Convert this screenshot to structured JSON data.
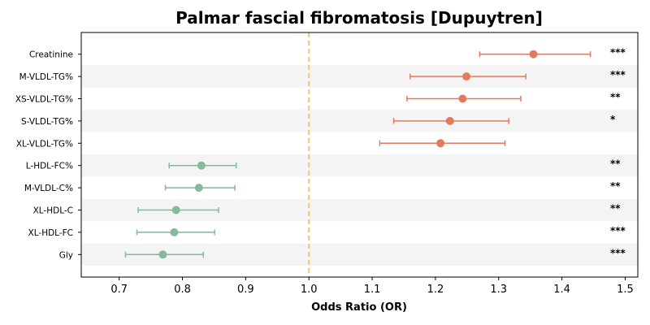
{
  "chart_data": {
    "type": "forest",
    "title": "Palmar fascial fibromatosis [Dupuytren]",
    "xlabel": "Odds Ratio (OR)",
    "ylabel": "",
    "xlim": [
      0.64,
      1.52
    ],
    "xticks": [
      "0.7",
      "0.8",
      "0.9",
      "1.0",
      "1.1",
      "1.2",
      "1.3",
      "1.4",
      "1.5"
    ],
    "reference_line": 1.0,
    "colors": {
      "risk": "#e07b5f",
      "protective": "#85b99b",
      "reference": "#f5c97a",
      "band": "#f4f4f4"
    },
    "rows": [
      {
        "label": "Creatinine",
        "or": 1.355,
        "lo": 1.27,
        "hi": 1.445,
        "sig": "***",
        "group": "risk"
      },
      {
        "label": "M-VLDL-TG%",
        "or": 1.249,
        "lo": 1.16,
        "hi": 1.343,
        "sig": "***",
        "group": "risk"
      },
      {
        "label": "XS-VLDL-TG%",
        "or": 1.243,
        "lo": 1.155,
        "hi": 1.335,
        "sig": "**",
        "group": "risk"
      },
      {
        "label": "S-VLDL-TG%",
        "or": 1.223,
        "lo": 1.134,
        "hi": 1.316,
        "sig": "*",
        "group": "risk"
      },
      {
        "label": "XL-VLDL-TG%",
        "or": 1.208,
        "lo": 1.112,
        "hi": 1.31,
        "sig": "",
        "group": "risk"
      },
      {
        "label": "L-HDL-FC%",
        "or": 0.83,
        "lo": 0.779,
        "hi": 0.885,
        "sig": "**",
        "group": "protective"
      },
      {
        "label": "M-VLDL-C%",
        "or": 0.826,
        "lo": 0.773,
        "hi": 0.883,
        "sig": "**",
        "group": "protective"
      },
      {
        "label": "XL-HDL-C",
        "or": 0.79,
        "lo": 0.73,
        "hi": 0.857,
        "sig": "**",
        "group": "protective"
      },
      {
        "label": "XL-HDL-FC",
        "or": 0.787,
        "lo": 0.728,
        "hi": 0.851,
        "sig": "***",
        "group": "protective"
      },
      {
        "label": "Gly",
        "or": 0.769,
        "lo": 0.71,
        "hi": 0.833,
        "sig": "***",
        "group": "protective"
      }
    ]
  }
}
